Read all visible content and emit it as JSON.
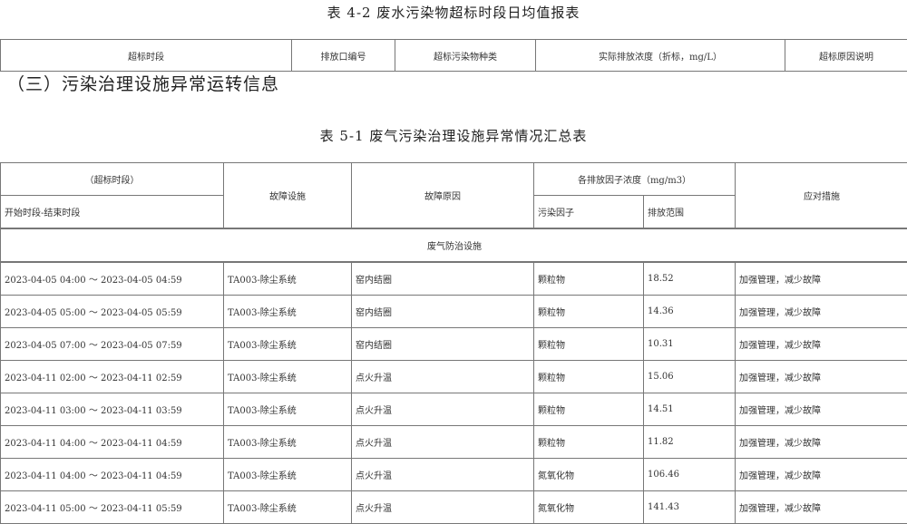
{
  "table42": {
    "title": "表 4-2 废水污染物超标时段日均值报表",
    "headers": [
      "超标时段",
      "排放口编号",
      "超标污染物种类",
      "实际排放浓度（折标，mg/L）",
      "超标原因说明"
    ]
  },
  "section_heading": "（三）污染治理设施异常运转信息",
  "table51": {
    "title": "表 5-1 废气污染治理设施异常情况汇总表",
    "header": {
      "period_group": "（超标时段）",
      "period": "开始时段-结束时段",
      "facility": "故障设施",
      "reason": "故障原因",
      "conc_group": "各排放因子浓度（mg/m3）",
      "factor": "污染因子",
      "range": "排放范围",
      "measures": "应对措施"
    },
    "section": "废气防治设施",
    "rows": [
      [
        "2023-04-05 04:00 ～ 2023-04-05 04:59",
        "TA003-除尘系统",
        "窑内结圈",
        "颗粒物",
        "18.52",
        "加强管理，减少故障"
      ],
      [
        "2023-04-05 05:00 ～ 2023-04-05 05:59",
        "TA003-除尘系统",
        "窑内结圈",
        "颗粒物",
        "14.36",
        "加强管理，减少故障"
      ],
      [
        "2023-04-05 07:00 ～ 2023-04-05 07:59",
        "TA003-除尘系统",
        "窑内结圈",
        "颗粒物",
        "10.31",
        "加强管理，减少故障"
      ],
      [
        "2023-04-11 02:00 ～ 2023-04-11 02:59",
        "TA003-除尘系统",
        "点火升温",
        "颗粒物",
        "15.06",
        "加强管理，减少故障"
      ],
      [
        "2023-04-11 03:00 ～ 2023-04-11 03:59",
        "TA003-除尘系统",
        "点火升温",
        "颗粒物",
        "14.51",
        "加强管理，减少故障"
      ],
      [
        "2023-04-11 04:00 ～ 2023-04-11 04:59",
        "TA003-除尘系统",
        "点火升温",
        "颗粒物",
        "11.82",
        "加强管理，减少故障"
      ],
      [
        "2023-04-11 04:00 ～ 2023-04-11 04:59",
        "TA003-除尘系统",
        "点火升温",
        "氮氧化物",
        "106.46",
        "加强管理，减少故障"
      ],
      [
        "2023-04-11 05:00 ～ 2023-04-11 05:59",
        "TA003-除尘系统",
        "点火升温",
        "氮氧化物",
        "141.43",
        "加强管理，减少故障"
      ]
    ]
  }
}
